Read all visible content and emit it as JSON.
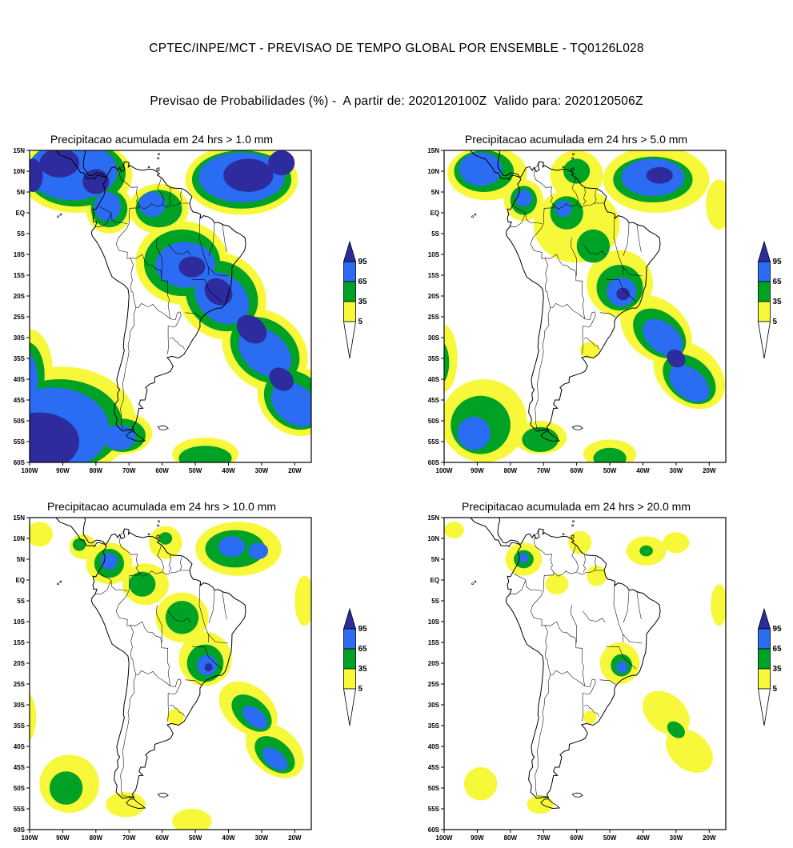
{
  "header": {
    "title_line1": "CPTEC/INPE/MCT - PREVISAO DE TEMPO GLOBAL POR ENSEMBLE - TQ0126L028",
    "title_line2": "Previsao de Probabilidades (%) -  A partir de: 2020120100Z  Valido para: 2020120506Z"
  },
  "chart_data": {
    "type": "heatmap",
    "title": "CPTEC/INPE/MCT - PREVISAO DE TEMPO GLOBAL POR ENSEMBLE - TQ0126L028",
    "subtitle": "Previsao de Probabilidades (%) - A partir de: 2020120100Z  Valido para: 2020120506Z",
    "model": "TQ0126L028",
    "init_time": "2020120100Z",
    "valid_time": "2020120506Z",
    "units": "%",
    "axes": {
      "lon_ticks": [
        "100W",
        "90W",
        "80W",
        "70W",
        "60W",
        "50W",
        "40W",
        "30W",
        "20W"
      ],
      "lat_ticks": [
        "15N",
        "10N",
        "5N",
        "EQ",
        "5S",
        "10S",
        "15S",
        "20S",
        "25S",
        "30S",
        "35S",
        "40S",
        "45S",
        "50S",
        "55S",
        "60S"
      ],
      "lon_range_deg": [
        -100,
        -15
      ],
      "lat_range_deg": [
        -60,
        15
      ],
      "grid": false
    },
    "legend": {
      "labels": [
        "95",
        "65",
        "35",
        "5"
      ],
      "level_colors": [
        "#ffffff",
        "#f8f83a",
        "#00a226",
        "#2a6cf2",
        "#2d2b9e"
      ],
      "level_meaning": [
        "<5%",
        ">=5%",
        ">=35%",
        ">=65%",
        ">=95%"
      ],
      "position": "right"
    },
    "region_format": "[level(1=yellow>=5,2=green>=35,3=blue>=65,4=purple>=95), center_lon, center_lat, rx_deg, ry_deg, rotation_deg]",
    "panels": [
      {
        "title": "Precipitacao acumulada em 24 hrs > 1.0 mm",
        "threshold_mm": 1.0,
        "regions": [
          [
            1,
            -86,
            9,
            17,
            9,
            0
          ],
          [
            1,
            -76,
            1,
            7,
            6,
            0
          ],
          [
            1,
            -36,
            8,
            17,
            8.5,
            0
          ],
          [
            1,
            -61,
            1,
            9,
            6,
            0
          ],
          [
            1,
            -54,
            -12,
            14,
            10,
            0
          ],
          [
            1,
            -42,
            -20,
            14,
            10,
            40
          ],
          [
            1,
            -29,
            -33,
            14,
            9,
            40
          ],
          [
            1,
            -20,
            -45,
            12,
            8,
            40
          ],
          [
            1,
            -90,
            -50,
            22,
            13,
            0
          ],
          [
            1,
            -100,
            -38,
            7,
            10,
            0
          ],
          [
            1,
            -72,
            -53,
            9,
            5,
            0
          ],
          [
            1,
            -47,
            -58,
            10,
            4,
            0
          ],
          [
            2,
            -86,
            9.5,
            15,
            8,
            0
          ],
          [
            2,
            -76,
            1,
            5.5,
            4.5,
            0
          ],
          [
            2,
            -36,
            8,
            15,
            7,
            0
          ],
          [
            2,
            -61,
            1,
            7,
            4.5,
            0
          ],
          [
            2,
            -54,
            -12,
            11.5,
            8,
            0
          ],
          [
            2,
            -42,
            -20,
            11.5,
            8,
            40
          ],
          [
            2,
            -29,
            -33,
            11.5,
            7,
            40
          ],
          [
            2,
            -20,
            -45,
            10,
            6.5,
            40
          ],
          [
            2,
            -91,
            -51,
            19,
            11,
            0
          ],
          [
            2,
            -101,
            -39,
            5.5,
            8,
            0
          ],
          [
            2,
            -72,
            -53.5,
            7,
            4,
            0
          ],
          [
            2,
            -47,
            -59,
            8,
            3,
            0
          ],
          [
            3,
            -87,
            10,
            13.5,
            7,
            0
          ],
          [
            3,
            -76.5,
            1.5,
            4,
            3.5,
            0
          ],
          [
            3,
            -36,
            8.5,
            13,
            6,
            0
          ],
          [
            3,
            -63,
            2,
            4,
            3,
            0
          ],
          [
            3,
            -53,
            -12.5,
            9,
            5.5,
            0
          ],
          [
            3,
            -42,
            -20.5,
            9,
            5.5,
            40
          ],
          [
            3,
            -29,
            -33.5,
            9,
            5,
            40
          ],
          [
            3,
            -20,
            -46,
            8,
            4.5,
            40
          ],
          [
            3,
            -93,
            -52,
            17,
            10,
            0
          ],
          [
            3,
            -102,
            -40,
            4.5,
            7,
            0
          ],
          [
            3,
            -73,
            -54,
            5,
            3,
            0
          ],
          [
            4,
            -91,
            12,
            6,
            3.5,
            0
          ],
          [
            4,
            -80,
            7.5,
            4,
            3,
            0
          ],
          [
            4,
            -99,
            9,
            3,
            4,
            0
          ],
          [
            4,
            -34,
            9,
            7.5,
            4,
            0
          ],
          [
            4,
            -24,
            12,
            4,
            3,
            0
          ],
          [
            4,
            -51,
            -13,
            4,
            2.5,
            0
          ],
          [
            4,
            -43,
            -19,
            4.5,
            3,
            40
          ],
          [
            4,
            -33,
            -28,
            5,
            3,
            40
          ],
          [
            4,
            -24,
            -40,
            4,
            2.5,
            40
          ],
          [
            4,
            -97,
            -55,
            12,
            7,
            0
          ]
        ]
      },
      {
        "title": "Precipitacao acumulada em 24 hrs > 5.0 mm",
        "threshold_mm": 5.0,
        "regions": [
          [
            1,
            -87,
            9.5,
            12,
            6.5,
            0
          ],
          [
            1,
            -76,
            3,
            6,
            5,
            0
          ],
          [
            1,
            -60,
            9,
            8,
            6,
            0
          ],
          [
            1,
            -36,
            8,
            16,
            8,
            0
          ],
          [
            1,
            -17,
            2,
            4,
            6,
            0
          ],
          [
            1,
            -60,
            -3,
            13,
            9,
            0
          ],
          [
            1,
            -47,
            -17,
            10,
            8,
            0
          ],
          [
            1,
            -36,
            -28,
            12,
            7,
            40
          ],
          [
            1,
            -26,
            -39,
            12,
            7,
            40
          ],
          [
            1,
            -88,
            -50,
            13,
            10,
            0
          ],
          [
            1,
            -100,
            -35,
            4,
            8,
            0
          ],
          [
            1,
            -71,
            -54,
            8,
            4,
            0
          ],
          [
            1,
            -50,
            -58,
            8,
            3.5,
            0
          ],
          [
            1,
            -56,
            -33,
            3,
            2,
            0
          ],
          [
            2,
            -88,
            10,
            9,
            5,
            0
          ],
          [
            2,
            -76,
            3,
            4,
            3.5,
            0
          ],
          [
            2,
            -60,
            10,
            4,
            3,
            0
          ],
          [
            2,
            -37,
            8,
            12,
            5.5,
            0
          ],
          [
            2,
            -63,
            0,
            5,
            4,
            0
          ],
          [
            2,
            -55,
            -8,
            5,
            4,
            0
          ],
          [
            2,
            -47,
            -18,
            7,
            5.5,
            0
          ],
          [
            2,
            -35,
            -29,
            9,
            5,
            40
          ],
          [
            2,
            -26,
            -40,
            9,
            5,
            40
          ],
          [
            2,
            -89,
            -51,
            9,
            7,
            0
          ],
          [
            2,
            -101,
            -36,
            2.5,
            5,
            0
          ],
          [
            2,
            -71,
            -54.5,
            5.5,
            3,
            0
          ],
          [
            2,
            -50,
            -59,
            5,
            2.5,
            0
          ],
          [
            3,
            -89,
            10.5,
            6.5,
            4,
            0
          ],
          [
            3,
            -76,
            3.5,
            2.5,
            2,
            0
          ],
          [
            3,
            -37,
            8.5,
            9.5,
            4.5,
            0
          ],
          [
            3,
            -64,
            1,
            2.5,
            2,
            0
          ],
          [
            3,
            -46.5,
            -19,
            4.5,
            3.5,
            0
          ],
          [
            3,
            -34,
            -30,
            7,
            3.5,
            40
          ],
          [
            3,
            -26,
            -41,
            7,
            3.5,
            40
          ],
          [
            3,
            -91,
            -53,
            5,
            4,
            0
          ],
          [
            4,
            -35,
            9,
            4,
            2,
            0
          ],
          [
            4,
            -46,
            -19.5,
            2,
            1.5,
            0
          ],
          [
            4,
            -30,
            -35,
            3,
            2,
            40
          ]
        ]
      },
      {
        "title": "Precipitacao acumulada em 24 hrs > 10.0 mm",
        "threshold_mm": 10.0,
        "regions": [
          [
            1,
            -76,
            4,
            7,
            5,
            0
          ],
          [
            1,
            -84,
            8,
            4,
            3,
            0
          ],
          [
            1,
            -97,
            11,
            4,
            3,
            0
          ],
          [
            1,
            -59,
            9,
            5,
            4,
            0
          ],
          [
            1,
            -37,
            7.5,
            13,
            6.5,
            0
          ],
          [
            1,
            -65,
            -1,
            7,
            5,
            0
          ],
          [
            1,
            -54,
            -9,
            8,
            6,
            0
          ],
          [
            1,
            -47,
            -19,
            8,
            6.5,
            0
          ],
          [
            1,
            -34,
            -31,
            10,
            5.5,
            40
          ],
          [
            1,
            -26,
            -41,
            10,
            5.5,
            40
          ],
          [
            1,
            -17,
            -5,
            3,
            6,
            0
          ],
          [
            1,
            -88,
            -49,
            9,
            7,
            0
          ],
          [
            1,
            -101,
            -33,
            3,
            6,
            0
          ],
          [
            1,
            -71,
            -54,
            6,
            3,
            0
          ],
          [
            1,
            -51,
            -58,
            6,
            3,
            0
          ],
          [
            1,
            -56,
            -33,
            2.5,
            2,
            0
          ],
          [
            2,
            -76,
            4,
            4.5,
            3.5,
            0
          ],
          [
            2,
            -85,
            8.5,
            2,
            1.5,
            0
          ],
          [
            2,
            -59,
            10,
            2,
            1.5,
            0
          ],
          [
            2,
            -38,
            7.5,
            9,
            4.5,
            0
          ],
          [
            2,
            -66,
            -1,
            4,
            3,
            0
          ],
          [
            2,
            -54,
            -9,
            5,
            4,
            0
          ],
          [
            2,
            -47,
            -20,
            5.5,
            4.5,
            0
          ],
          [
            2,
            -33,
            -32,
            7,
            3.5,
            40
          ],
          [
            2,
            -26,
            -42,
            7,
            3.5,
            40
          ],
          [
            2,
            -89,
            -50,
            5,
            4,
            0
          ],
          [
            3,
            -76,
            4.5,
            2.5,
            2,
            0
          ],
          [
            3,
            -39,
            8,
            4,
            2.5,
            0
          ],
          [
            3,
            -31,
            7,
            3,
            2,
            0
          ],
          [
            3,
            -46.5,
            -20.5,
            3,
            2.5,
            0
          ],
          [
            3,
            -32,
            -33,
            4.5,
            2,
            40
          ],
          [
            3,
            -26,
            -43,
            4.5,
            2,
            40
          ],
          [
            4,
            -46,
            -21,
            1.2,
            1,
            0
          ]
        ]
      },
      {
        "title": "Precipitacao acumulada em 24 hrs > 20.0 mm",
        "threshold_mm": 20.0,
        "regions": [
          [
            1,
            -76,
            5,
            5.5,
            4,
            0
          ],
          [
            1,
            -97,
            12,
            3,
            2,
            0
          ],
          [
            1,
            -59,
            9,
            3.5,
            2.8,
            0
          ],
          [
            1,
            -54,
            1,
            3,
            2.5,
            0
          ],
          [
            1,
            -39,
            7,
            6,
            3.5,
            0
          ],
          [
            1,
            -30,
            9,
            4,
            2.5,
            0
          ],
          [
            1,
            -66,
            -1,
            3.5,
            2.5,
            0
          ],
          [
            1,
            -47,
            -20,
            6,
            5,
            0
          ],
          [
            1,
            -33,
            -32,
            8,
            4.5,
            40
          ],
          [
            1,
            -26,
            -41,
            8,
            4.5,
            40
          ],
          [
            1,
            -17,
            -6,
            2.5,
            5,
            0
          ],
          [
            1,
            -89,
            -49,
            5,
            4,
            0
          ],
          [
            1,
            -71,
            -54,
            4,
            2.2,
            0
          ],
          [
            1,
            -56,
            -33,
            2,
            1.6,
            0
          ],
          [
            2,
            -76,
            5,
            3,
            2.2,
            0
          ],
          [
            2,
            -39,
            7,
            2,
            1.3,
            0
          ],
          [
            2,
            -46.5,
            -20.5,
            3.2,
            2.7,
            0
          ],
          [
            2,
            -30,
            -36,
            3,
            1.7,
            40
          ],
          [
            3,
            -76,
            5.3,
            1.5,
            1.2,
            0
          ],
          [
            3,
            -46.3,
            -21,
            1.7,
            1.4,
            0
          ]
        ]
      }
    ]
  }
}
